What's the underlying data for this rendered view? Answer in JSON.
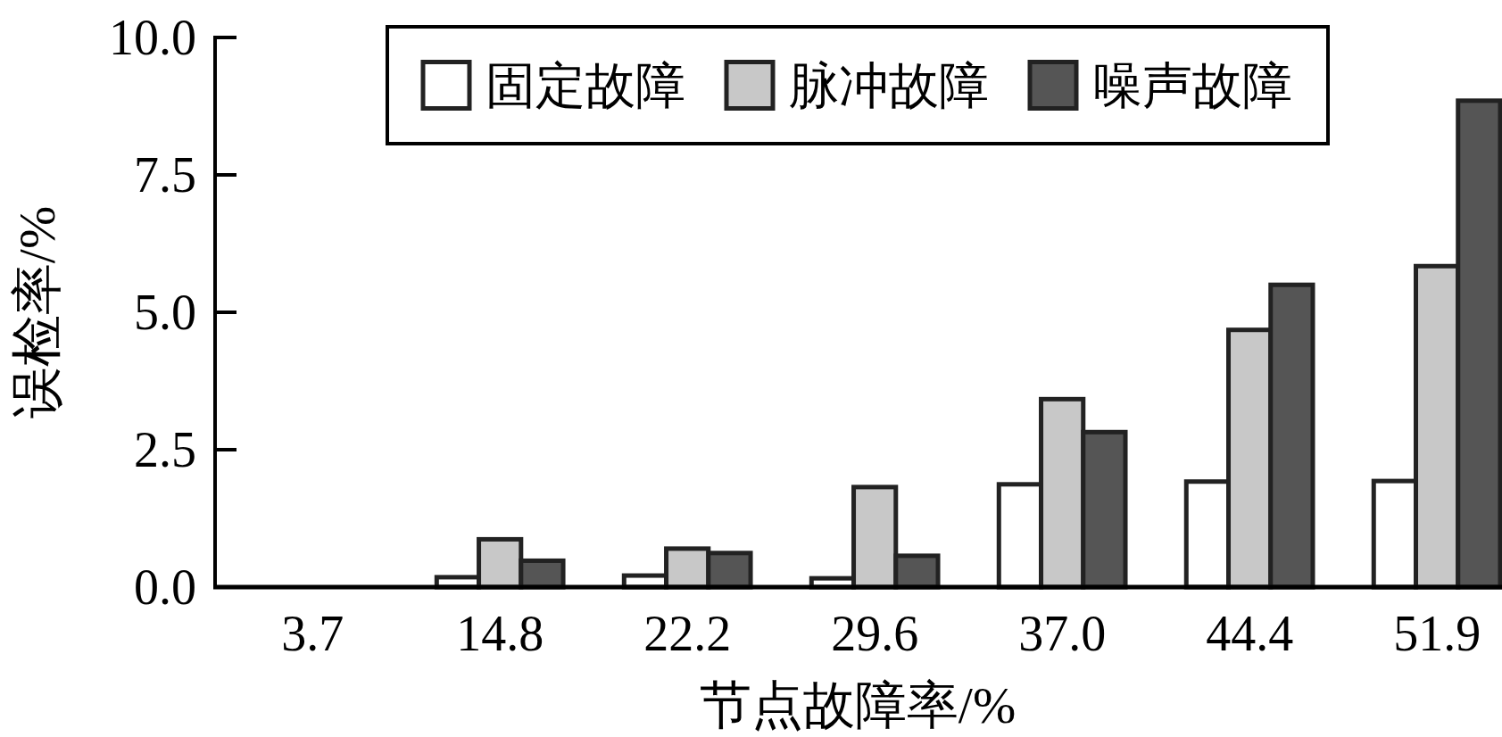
{
  "chart_data": {
    "type": "bar",
    "xlabel": "节点故障率/%",
    "ylabel": "误检率/%",
    "categories": [
      "3.7",
      "14.8",
      "22.2",
      "29.6",
      "37.0",
      "44.4",
      "51.9"
    ],
    "series": [
      {
        "name": "固定故障",
        "color": "#ffffff",
        "values": [
          0,
          0.18,
          0.21,
          0.16,
          1.87,
          1.92,
          1.93
        ]
      },
      {
        "name": "脉冲故障",
        "color": "#c8c8c8",
        "values": [
          0,
          0.87,
          0.7,
          1.82,
          3.42,
          4.68,
          5.84
        ]
      },
      {
        "name": "噪声故障",
        "color": "#555555",
        "values": [
          0,
          0.48,
          0.62,
          0.57,
          2.82,
          5.5,
          8.85
        ]
      }
    ],
    "ylim": [
      0,
      10
    ],
    "yticks": [
      {
        "value": 0,
        "label": "0.0"
      },
      {
        "value": 2.5,
        "label": "2.5"
      },
      {
        "value": 5,
        "label": "5.0"
      },
      {
        "value": 7.5,
        "label": "7.5"
      },
      {
        "value": 10,
        "label": "10.0"
      }
    ],
    "legend": "top"
  }
}
